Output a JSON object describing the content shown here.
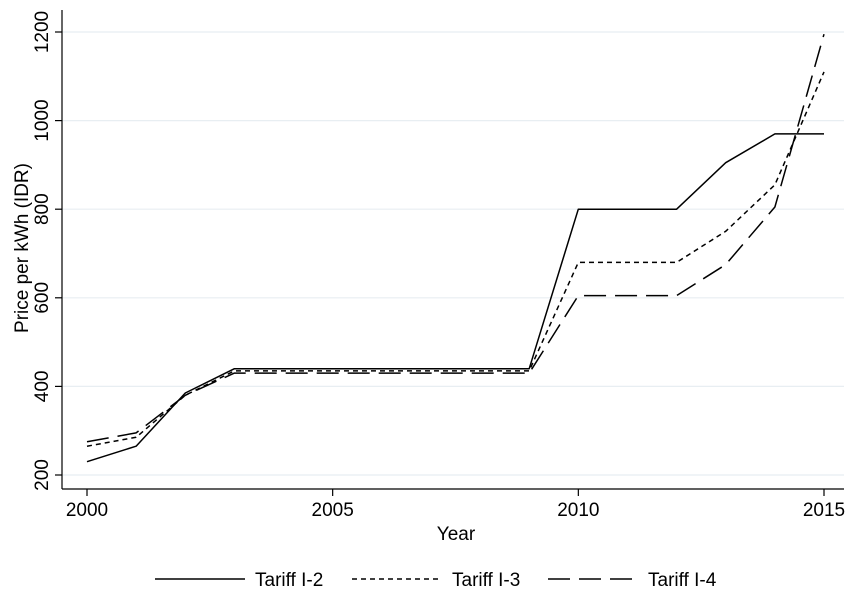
{
  "chart_data": {
    "type": "line",
    "title": "",
    "xlabel": "Year",
    "ylabel": "Price per kWh (IDR)",
    "xlim": [
      2000,
      2015
    ],
    "ylim": [
      200,
      1200
    ],
    "xticks": [
      2000,
      2005,
      2010,
      2015
    ],
    "yticks": [
      200,
      400,
      600,
      800,
      1000,
      1200
    ],
    "grid": "horizontal",
    "legend_position": "bottom",
    "series": [
      {
        "name": "Tariff I-2",
        "dash": "solid",
        "color": "#000000",
        "x": [
          2000,
          2001,
          2002,
          2003,
          2009,
          2010,
          2012,
          2013,
          2014,
          2015
        ],
        "values": [
          230,
          265,
          385,
          440,
          440,
          800,
          800,
          905,
          970,
          970
        ]
      },
      {
        "name": "Tariff I-3",
        "dash": "short",
        "color": "#000000",
        "x": [
          2000,
          2001,
          2002,
          2003,
          2009,
          2010,
          2012,
          2013,
          2014,
          2015
        ],
        "values": [
          265,
          285,
          380,
          435,
          435,
          680,
          680,
          750,
          855,
          1110
        ]
      },
      {
        "name": "Tariff I-4",
        "dash": "long",
        "color": "#000000",
        "x": [
          2000,
          2001,
          2002,
          2003,
          2009,
          2010,
          2012,
          2013,
          2014,
          2015
        ],
        "values": [
          275,
          295,
          380,
          430,
          430,
          605,
          605,
          675,
          805,
          1195
        ]
      }
    ]
  }
}
